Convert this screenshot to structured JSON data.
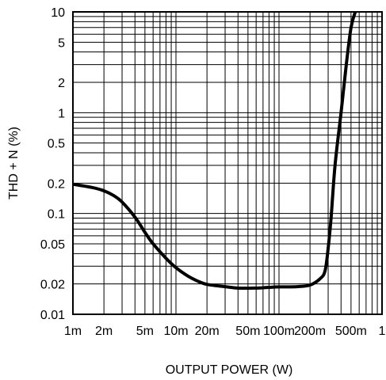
{
  "chart_data": {
    "type": "line",
    "title": "",
    "xlabel": "OUTPUT POWER (W)",
    "ylabel": "THD + N (%)",
    "x_scale": "log",
    "y_scale": "log",
    "xlim": [
      0.001,
      1
    ],
    "ylim": [
      0.01,
      10
    ],
    "grid": true,
    "x_ticks": [
      {
        "value": 0.001,
        "label": "1m"
      },
      {
        "value": 0.002,
        "label": "2m"
      },
      {
        "value": 0.005,
        "label": "5m"
      },
      {
        "value": 0.01,
        "label": "10m"
      },
      {
        "value": 0.02,
        "label": "20m"
      },
      {
        "value": 0.05,
        "label": "50m"
      },
      {
        "value": 0.1,
        "label": "100m"
      },
      {
        "value": 0.2,
        "label": "200m"
      },
      {
        "value": 0.5,
        "label": "500m"
      },
      {
        "value": 1,
        "label": "1"
      }
    ],
    "y_ticks": [
      {
        "value": 0.01,
        "label": "0.01"
      },
      {
        "value": 0.02,
        "label": "0.02"
      },
      {
        "value": 0.05,
        "label": "0.05"
      },
      {
        "value": 0.1,
        "label": "0.1"
      },
      {
        "value": 0.2,
        "label": "0.2"
      },
      {
        "value": 0.5,
        "label": "0.5"
      },
      {
        "value": 1,
        "label": "1"
      },
      {
        "value": 2,
        "label": "2"
      },
      {
        "value": 5,
        "label": "5"
      },
      {
        "value": 10,
        "label": "10"
      }
    ],
    "series": [
      {
        "x": [
          0.001,
          0.0015,
          0.002,
          0.0025,
          0.003,
          0.004,
          0.005,
          0.006,
          0.008,
          0.01,
          0.013,
          0.016,
          0.02,
          0.03,
          0.04,
          0.06,
          0.08,
          0.1,
          0.15,
          0.2,
          0.25,
          0.28,
          0.3,
          0.32,
          0.35,
          0.4,
          0.45,
          0.5,
          0.55
        ],
        "y": [
          0.195,
          0.182,
          0.168,
          0.15,
          0.13,
          0.092,
          0.065,
          0.05,
          0.036,
          0.029,
          0.024,
          0.0215,
          0.0198,
          0.0188,
          0.0182,
          0.0182,
          0.0185,
          0.0187,
          0.0188,
          0.0195,
          0.0225,
          0.027,
          0.045,
          0.09,
          0.3,
          1.0,
          3.0,
          7.0,
          10.0
        ]
      }
    ]
  }
}
